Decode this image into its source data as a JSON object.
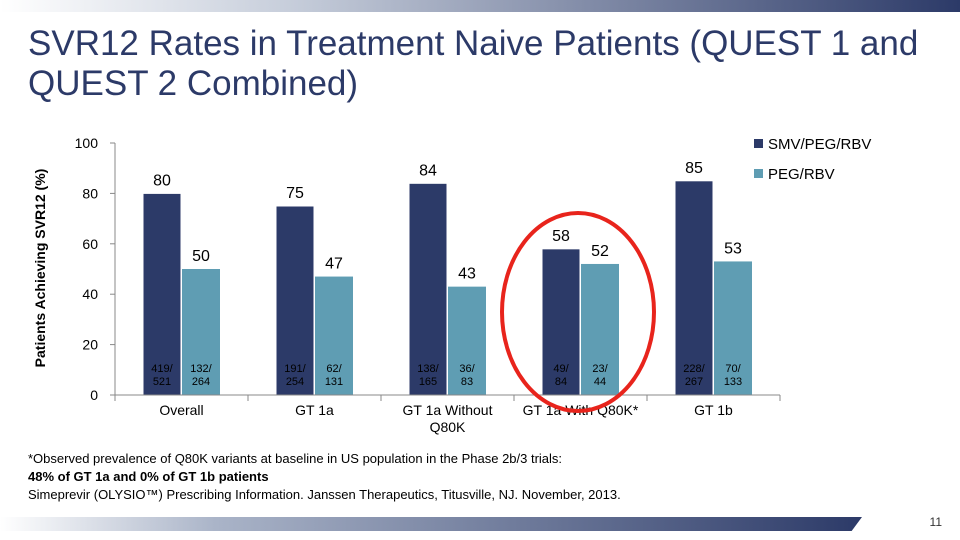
{
  "title": "SVR12 Rates in Treatment Naive Patients (QUEST 1 and QUEST 2 Combined)",
  "footnote": {
    "line1": "*Observed prevalence of Q80K variants at baseline in US population in the Phase 2b/3 trials:",
    "line2": "48% of GT 1a and 0% of GT 1b patients",
    "line3": "Simeprevir (OLYSIO™) Prescribing Information. Janssen Therapeutics, Titusville, NJ. November, 2013."
  },
  "page_number": "11",
  "colors": {
    "series1": "#2c3a68",
    "series2": "#5f9db3",
    "highlight": "#e8241c"
  },
  "chart_data": {
    "type": "bar",
    "ylabel": "Patients Achieving SVR12 (%)",
    "ylim": [
      0,
      100
    ],
    "yticks": [
      "0",
      "20",
      "40",
      "60",
      "80",
      "100"
    ],
    "categories": [
      [
        "Overall"
      ],
      [
        "GT 1a"
      ],
      [
        "GT 1a Without",
        "Q80K"
      ],
      [
        "GT 1a With Q80K*"
      ],
      [
        "GT 1b"
      ]
    ],
    "series": [
      {
        "name": "SMV/PEG/RBV",
        "values": [
          80,
          75,
          84,
          58,
          85
        ],
        "n": [
          [
            "419/",
            "521"
          ],
          [
            "191/",
            "254"
          ],
          [
            "138/",
            "165"
          ],
          [
            "49/",
            "84"
          ],
          [
            "228/",
            "267"
          ]
        ]
      },
      {
        "name": "PEG/RBV",
        "values": [
          50,
          47,
          43,
          52,
          53
        ],
        "n": [
          [
            "132/",
            "264"
          ],
          [
            "62/",
            "131"
          ],
          [
            "36/",
            "83"
          ],
          [
            "23/",
            "44"
          ],
          [
            "70/",
            "133"
          ]
        ]
      }
    ],
    "highlighted_category": "GT 1a With Q80K*",
    "legend_position": "top-right"
  }
}
